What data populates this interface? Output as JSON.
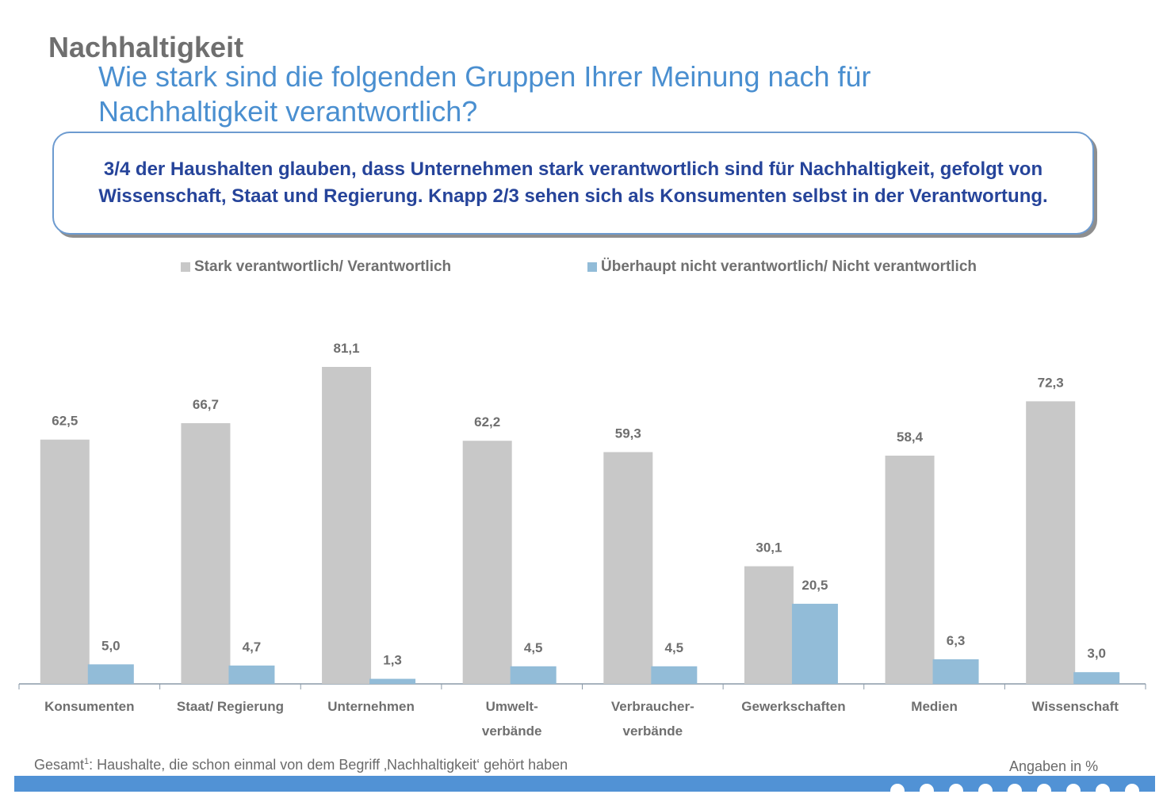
{
  "header": {
    "title": "Nachhaltigkeit",
    "question_line1": "Wie stark sind die folgenden Gruppen Ihrer Meinung nach für",
    "question_line2": "Nachhaltigkeit verantwortlich?"
  },
  "summary": {
    "text": "3/4 der Haushalten glauben, dass Unternehmen stark verantwortlich sind für Nachhaltigkeit, gefolgt von Wissenschaft, Staat und Regierung. Knapp 2/3 sehen sich als Konsumenten selbst in der Verantwortung."
  },
  "footer": {
    "footnote_prefix": "Gesamt",
    "footnote_sup": "1",
    "footnote_text": ": Haushalte, die schon einmal von dem Begriff ‚Nachhaltigkeit‘ gehört haben",
    "units": "Angaben in %"
  },
  "colors": {
    "series1": "#c8c8c8",
    "series2": "#92bcd8",
    "axis": "#8a9aa8",
    "label": "#6f6f6f",
    "accent": "#5192d5"
  },
  "chart_data": {
    "type": "bar",
    "title": "",
    "xlabel": "",
    "ylabel": "",
    "ylim": [
      0,
      85
    ],
    "grid": false,
    "legend_position": "top",
    "categories": [
      [
        "Konsumenten"
      ],
      [
        "Staat/ Regierung"
      ],
      [
        "Unternehmen"
      ],
      [
        "Umwelt-",
        "verbände"
      ],
      [
        "Verbraucher-",
        "verbände"
      ],
      [
        "Gewerkschaften"
      ],
      [
        "Medien"
      ],
      [
        "Wissenschaft"
      ]
    ],
    "series": [
      {
        "name": "Stark verantwortlich/ Verantwortlich",
        "values": [
          62.5,
          66.7,
          81.1,
          62.2,
          59.3,
          30.1,
          58.4,
          72.3
        ],
        "labels": [
          "62,5",
          "66,7",
          "81,1",
          "62,2",
          "59,3",
          "30,1",
          "58,4",
          "72,3"
        ]
      },
      {
        "name": "Überhaupt nicht verantwortlich/ Nicht verantwortlich",
        "values": [
          5.0,
          4.7,
          1.3,
          4.5,
          4.5,
          20.5,
          6.3,
          3.0
        ],
        "labels": [
          "5,0",
          "4,7",
          "1,3",
          "4,5",
          "4,5",
          "20,5",
          "6,3",
          "3,0"
        ]
      }
    ]
  }
}
